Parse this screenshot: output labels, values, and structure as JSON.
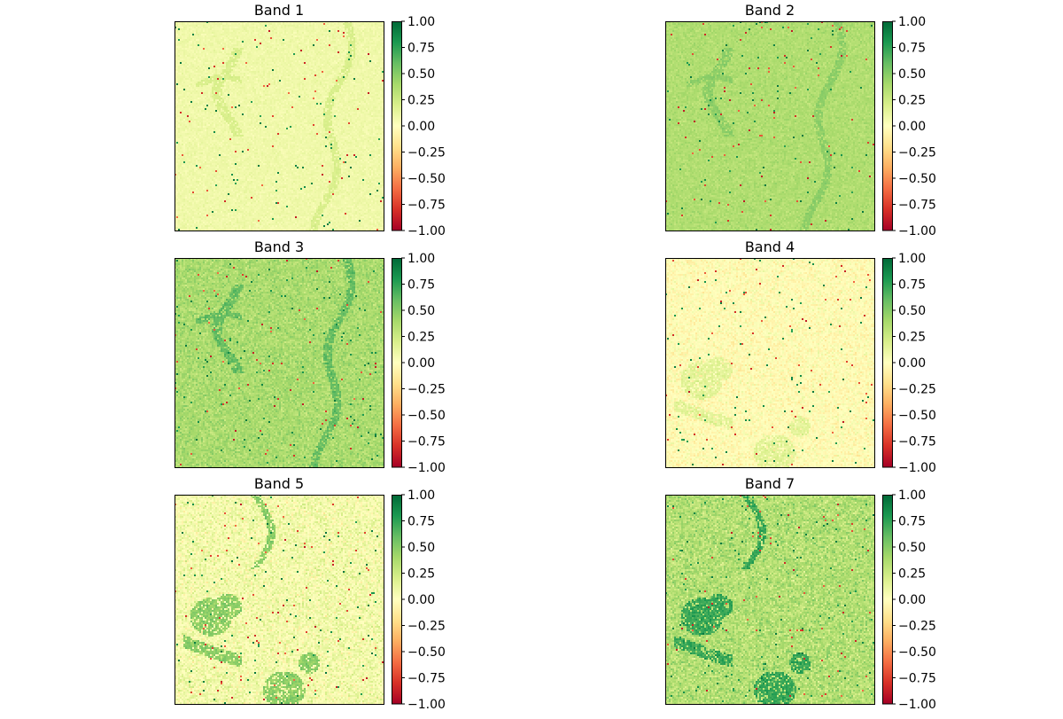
{
  "chart_data": {
    "type": "heatmap",
    "colormap": "RdYlGn",
    "layout": "3 rows x 2 columns of image panels, each with a vertical colorbar on its right",
    "axes_ticks_shown": false,
    "grid": false,
    "colorbar": {
      "range": [
        -1.0,
        1.0
      ],
      "ticks": [
        "1.00",
        "0.75",
        "0.50",
        "0.25",
        "0.00",
        "−0.25",
        "−0.50",
        "−0.75",
        "−1.00"
      ],
      "tick_values": [
        1.0,
        0.75,
        0.5,
        0.25,
        0.0,
        -0.25,
        -0.5,
        -0.75,
        -1.0
      ]
    },
    "panels": [
      {
        "title": "Band 1",
        "mean_value": 0.08,
        "noise": 0.04,
        "feature_value": 0.2,
        "features": [
          "channels-top-left",
          "channel-right"
        ]
      },
      {
        "title": "Band 2",
        "mean_value": 0.36,
        "noise": 0.06,
        "feature_value": 0.48,
        "features": [
          "channels-top-left",
          "channel-right"
        ]
      },
      {
        "title": "Band 3",
        "mean_value": 0.38,
        "noise": 0.1,
        "feature_value": 0.6,
        "features": [
          "channels-top-left",
          "channel-right"
        ]
      },
      {
        "title": "Band 4",
        "mean_value": -0.02,
        "noise": 0.1,
        "feature_value": 0.15,
        "features": [
          "lake-bottom-left"
        ]
      },
      {
        "title": "Band 5",
        "mean_value": 0.06,
        "noise": 0.14,
        "feature_value": 0.48,
        "features": [
          "lake-bottom-left",
          "river-top"
        ]
      },
      {
        "title": "Band 7",
        "mean_value": 0.35,
        "noise": 0.14,
        "feature_value": 0.72,
        "features": [
          "lake-bottom-left",
          "river-top"
        ]
      }
    ]
  }
}
